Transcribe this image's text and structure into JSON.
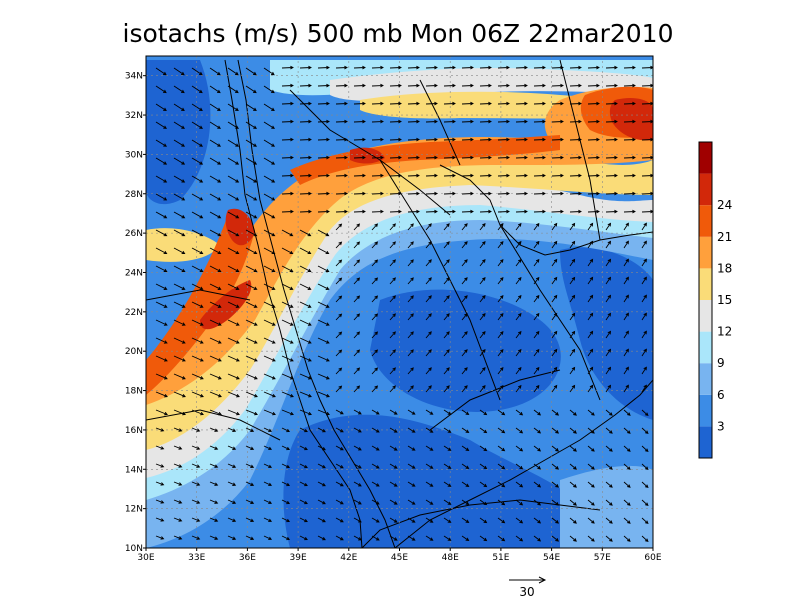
{
  "title": "isotachs (m/s) 500 mb Mon 06Z 22mar2010",
  "map": {
    "lon_range": [
      30,
      60
    ],
    "lat_range": [
      10,
      35
    ],
    "lon_ticks": [
      "30E",
      "33E",
      "36E",
      "39E",
      "42E",
      "45E",
      "48E",
      "51E",
      "54E",
      "57E",
      "60E"
    ],
    "lat_ticks": [
      "10N",
      "12N",
      "14N",
      "16N",
      "18N",
      "20N",
      "22N",
      "24N",
      "26N",
      "28N",
      "30N",
      "32N",
      "34N"
    ]
  },
  "colorbar": {
    "labels": [
      "3",
      "6",
      "9",
      "12",
      "15",
      "18",
      "21",
      "24"
    ],
    "colors": [
      "#1e64d2",
      "#3c8ce6",
      "#78b4f0",
      "#aae6fa",
      "#e6e6e6",
      "#fadc78",
      "#ffa03c",
      "#f05a0a",
      "#d2280a",
      "#a00000"
    ]
  },
  "vector_reference": {
    "label": "30"
  }
}
